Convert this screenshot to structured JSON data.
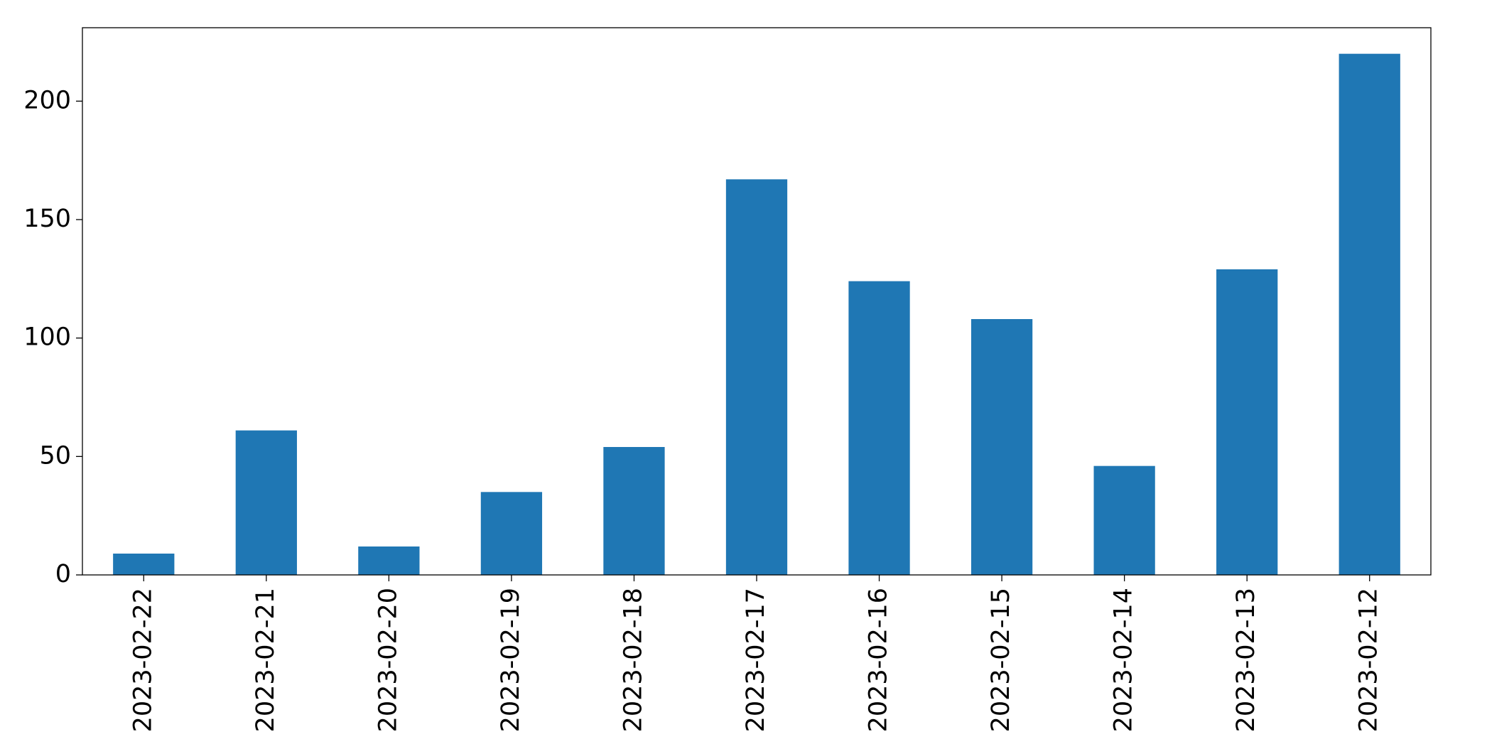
{
  "chart_data": {
    "type": "bar",
    "categories": [
      "2023-02-22",
      "2023-02-21",
      "2023-02-20",
      "2023-02-19",
      "2023-02-18",
      "2023-02-17",
      "2023-02-16",
      "2023-02-15",
      "2023-02-14",
      "2023-02-13",
      "2023-02-12"
    ],
    "values": [
      9,
      61,
      12,
      35,
      54,
      167,
      124,
      108,
      46,
      129,
      220
    ],
    "color": "#1f77b4",
    "ylim": [
      0,
      231
    ],
    "yticks": [
      0,
      50,
      100,
      150,
      200
    ],
    "grid": false
  }
}
